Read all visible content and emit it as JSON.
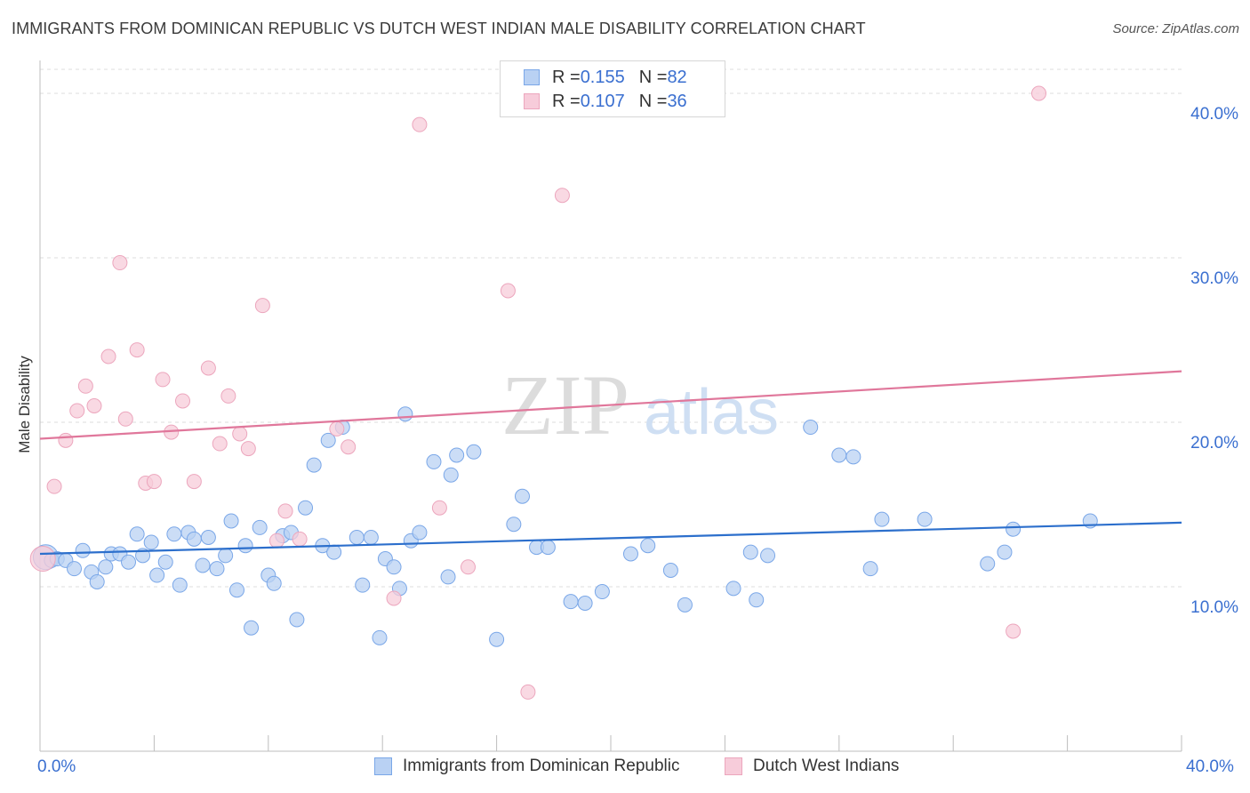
{
  "chart_data": {
    "type": "scatter",
    "title": "IMMIGRANTS FROM DOMINICAN REPUBLIC VS DUTCH WEST INDIAN MALE DISABILITY CORRELATION CHART",
    "source": "Source: ZipAtlas.com",
    "ylabel": "Male Disability",
    "xlim": [
      0,
      40
    ],
    "ylim": [
      0,
      42
    ],
    "x_tick_labels": [
      "0.0%",
      "40.0%"
    ],
    "y_tick_labels": [
      {
        "value": 10,
        "label": "10.0%"
      },
      {
        "value": 20,
        "label": "20.0%"
      },
      {
        "value": 30,
        "label": "30.0%"
      },
      {
        "value": 40,
        "label": "40.0%"
      }
    ],
    "grid": true,
    "watermark": {
      "zip": "ZIP",
      "atlas": "atlas"
    },
    "legend": {
      "placement": "top-center",
      "rows": [
        {
          "r_label": "R = ",
          "r": "0.155",
          "n_label": "N = ",
          "n": "82"
        },
        {
          "r_label": "R = ",
          "r": "0.107",
          "n_label": "N = ",
          "n": "36"
        }
      ]
    },
    "series": [
      {
        "name": "Immigrants from Dominican Republic",
        "color": "#7aa7e8",
        "fill": "#b9d1f3",
        "line_color": "#2c6fcc",
        "trend": {
          "x": [
            0,
            40
          ],
          "y": [
            12.0,
            13.9
          ]
        },
        "points": [
          [
            0.2,
            11.8
          ],
          [
            0.4,
            11.6
          ],
          [
            0.6,
            11.7
          ],
          [
            0.9,
            11.6
          ],
          [
            1.2,
            11.1
          ],
          [
            1.5,
            12.2
          ],
          [
            1.8,
            10.9
          ],
          [
            2.0,
            10.3
          ],
          [
            2.3,
            11.2
          ],
          [
            2.5,
            12.0
          ],
          [
            2.8,
            12.0
          ],
          [
            3.1,
            11.5
          ],
          [
            3.4,
            13.2
          ],
          [
            3.6,
            11.9
          ],
          [
            3.9,
            12.7
          ],
          [
            4.1,
            10.7
          ],
          [
            4.4,
            11.5
          ],
          [
            4.7,
            13.2
          ],
          [
            4.9,
            10.1
          ],
          [
            5.2,
            13.3
          ],
          [
            5.4,
            12.9
          ],
          [
            5.7,
            11.3
          ],
          [
            5.9,
            13.0
          ],
          [
            6.2,
            11.1
          ],
          [
            6.5,
            11.9
          ],
          [
            6.7,
            14.0
          ],
          [
            6.9,
            9.8
          ],
          [
            7.2,
            12.5
          ],
          [
            7.4,
            7.5
          ],
          [
            7.7,
            13.6
          ],
          [
            8.0,
            10.7
          ],
          [
            8.2,
            10.2
          ],
          [
            8.5,
            13.1
          ],
          [
            8.8,
            13.3
          ],
          [
            9.0,
            8.0
          ],
          [
            9.3,
            14.8
          ],
          [
            9.6,
            17.4
          ],
          [
            9.9,
            12.5
          ],
          [
            10.1,
            18.9
          ],
          [
            10.3,
            12.1
          ],
          [
            10.6,
            19.7
          ],
          [
            11.1,
            13.0
          ],
          [
            11.3,
            10.1
          ],
          [
            11.6,
            13.0
          ],
          [
            11.9,
            6.9
          ],
          [
            12.1,
            11.7
          ],
          [
            12.4,
            11.2
          ],
          [
            12.8,
            20.5
          ],
          [
            12.6,
            9.9
          ],
          [
            13.0,
            12.8
          ],
          [
            13.3,
            13.3
          ],
          [
            13.8,
            17.6
          ],
          [
            14.4,
            16.8
          ],
          [
            14.6,
            18.0
          ],
          [
            14.3,
            10.6
          ],
          [
            15.2,
            18.2
          ],
          [
            16.0,
            6.8
          ],
          [
            16.6,
            13.8
          ],
          [
            16.9,
            15.5
          ],
          [
            17.4,
            12.4
          ],
          [
            17.8,
            12.4
          ],
          [
            18.6,
            9.1
          ],
          [
            19.1,
            9.0
          ],
          [
            19.7,
            9.7
          ],
          [
            20.7,
            12.0
          ],
          [
            21.3,
            12.5
          ],
          [
            22.1,
            11.0
          ],
          [
            22.6,
            8.9
          ],
          [
            24.3,
            9.9
          ],
          [
            24.9,
            12.1
          ],
          [
            25.1,
            9.2
          ],
          [
            25.5,
            11.9
          ],
          [
            27.0,
            19.7
          ],
          [
            28.0,
            18.0
          ],
          [
            28.5,
            17.9
          ],
          [
            29.1,
            11.1
          ],
          [
            29.5,
            14.1
          ],
          [
            31.0,
            14.1
          ],
          [
            33.2,
            11.4
          ],
          [
            33.8,
            12.1
          ],
          [
            34.1,
            13.5
          ],
          [
            36.8,
            14.0
          ]
        ]
      },
      {
        "name": "Dutch West Indians",
        "color": "#eca6bd",
        "fill": "#f7ccda",
        "line_color": "#e0779b",
        "trend": {
          "x": [
            0,
            40
          ],
          "y": [
            19.0,
            23.1
          ]
        },
        "points": [
          [
            0.1,
            11.7
          ],
          [
            0.5,
            16.1
          ],
          [
            0.9,
            18.9
          ],
          [
            1.3,
            20.7
          ],
          [
            1.6,
            22.2
          ],
          [
            1.9,
            21.0
          ],
          [
            2.4,
            24.0
          ],
          [
            2.8,
            29.7
          ],
          [
            3.0,
            20.2
          ],
          [
            3.4,
            24.4
          ],
          [
            3.7,
            16.3
          ],
          [
            4.0,
            16.4
          ],
          [
            4.3,
            22.6
          ],
          [
            4.6,
            19.4
          ],
          [
            5.0,
            21.3
          ],
          [
            5.4,
            16.4
          ],
          [
            5.9,
            23.3
          ],
          [
            6.3,
            18.7
          ],
          [
            6.6,
            21.6
          ],
          [
            7.0,
            19.3
          ],
          [
            7.3,
            18.4
          ],
          [
            7.8,
            27.1
          ],
          [
            8.3,
            12.8
          ],
          [
            8.6,
            14.6
          ],
          [
            9.1,
            12.9
          ],
          [
            10.4,
            19.6
          ],
          [
            10.8,
            18.5
          ],
          [
            12.4,
            9.3
          ],
          [
            13.3,
            38.1
          ],
          [
            14.0,
            14.8
          ],
          [
            15.0,
            11.2
          ],
          [
            16.4,
            28.0
          ],
          [
            17.1,
            3.6
          ],
          [
            18.3,
            33.8
          ],
          [
            34.1,
            7.3
          ],
          [
            35.0,
            40.0
          ]
        ]
      }
    ]
  }
}
